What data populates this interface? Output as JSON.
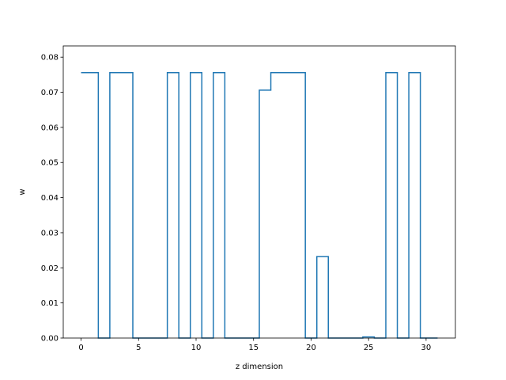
{
  "chart_data": {
    "type": "line",
    "drawstyle": "steps-mid",
    "title": "",
    "xlabel": "z dimension",
    "ylabel": "w",
    "xlim": [
      -1.55,
      32.55
    ],
    "ylim": [
      0,
      0.0832
    ],
    "grid": false,
    "legend": "none",
    "line_color": "#1f77b4",
    "x_ticks": [
      0,
      5,
      10,
      15,
      20,
      25,
      30
    ],
    "y_ticks": [
      0.0,
      0.01,
      0.02,
      0.03,
      0.04,
      0.05,
      0.06,
      0.07,
      0.08
    ],
    "y_tick_labels": [
      "0.00",
      "0.01",
      "0.02",
      "0.03",
      "0.04",
      "0.05",
      "0.06",
      "0.07",
      "0.08"
    ],
    "series": [
      {
        "x": [
          0,
          1,
          2,
          3,
          4,
          5,
          6,
          7,
          8,
          9,
          10,
          11,
          12,
          13,
          14,
          15,
          16,
          17,
          18,
          19,
          20,
          21,
          22,
          23,
          24,
          25,
          26,
          27,
          28,
          29,
          30,
          31
        ],
        "values": [
          0.0756,
          0.0756,
          0.0,
          0.0756,
          0.0756,
          0.0,
          0.0,
          0.0,
          0.0756,
          0.0,
          0.0756,
          0.0,
          0.0756,
          0.0,
          0.0,
          0.0,
          0.0706,
          0.0756,
          0.0756,
          0.0756,
          0.0,
          0.0232,
          0.0,
          0.0,
          0.0,
          0.0003,
          0.0,
          0.0756,
          0.0,
          0.0756,
          0.0,
          0.0
        ]
      }
    ]
  }
}
